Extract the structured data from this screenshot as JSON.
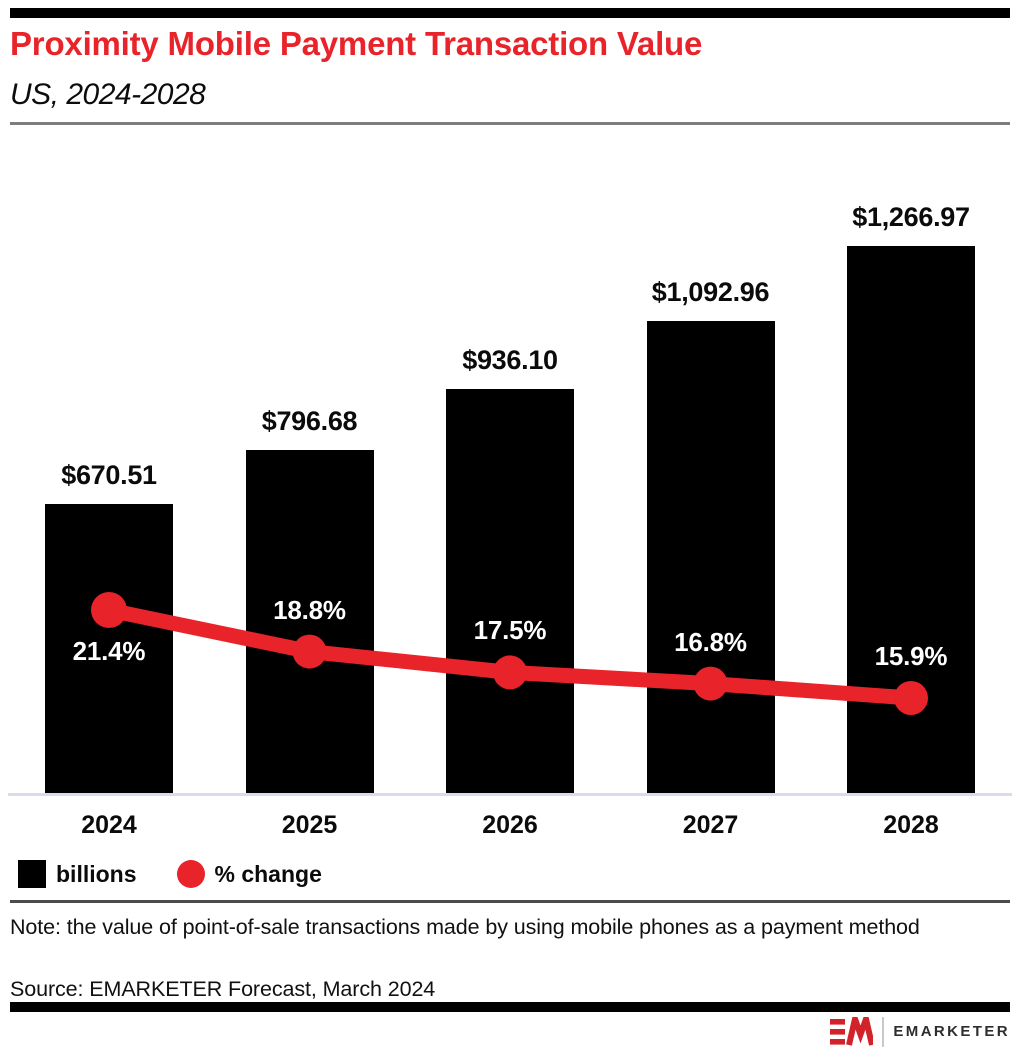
{
  "page": {
    "title": "Proximity Mobile Payment Transaction Value",
    "subtitle": "US, 2024-2028",
    "note": "Note: the value of point-of-sale transactions made by using mobile phones as a payment method",
    "source": "Source: EMARKETER Forecast, March 2024",
    "logo_text": "EMARKETER"
  },
  "legend": {
    "bars_label": "billions",
    "line_label": "% change"
  },
  "colors": {
    "brand_red": "#e8232a",
    "bar_black": "#000000",
    "pct_label_text": "#ffffff",
    "axis_line": "#d9dde9",
    "header_divider": "#7d7d7d",
    "legend_divider": "#4b4b4b",
    "logo_red": "#d2232a",
    "logo_text": "#2d2d2d"
  },
  "chart_data": {
    "type": "bar+line",
    "title": "Proximity Mobile Payment Transaction Value",
    "subtitle": "US, 2024-2028",
    "categories": [
      "2024",
      "2025",
      "2026",
      "2027",
      "2028"
    ],
    "series": [
      {
        "name": "billions",
        "type": "bar",
        "values": [
          670.51,
          796.68,
          936.1,
          1092.96,
          1266.97
        ],
        "labels": [
          "$670.51",
          "$796.68",
          "$936.10",
          "$1,092.96",
          "$1,266.97"
        ],
        "color": "#000000"
      },
      {
        "name": "% change",
        "type": "line",
        "values": [
          21.4,
          18.8,
          17.5,
          16.8,
          15.9
        ],
        "labels": [
          "21.4%",
          "18.8%",
          "17.5%",
          "16.8%",
          "15.9%"
        ],
        "color": "#e8232a"
      }
    ],
    "xlabel": "",
    "ylabel": "",
    "ylim": [
      0,
      1420
    ],
    "grid": false,
    "legend_position": "bottom-left",
    "value_labels_shown": true
  }
}
